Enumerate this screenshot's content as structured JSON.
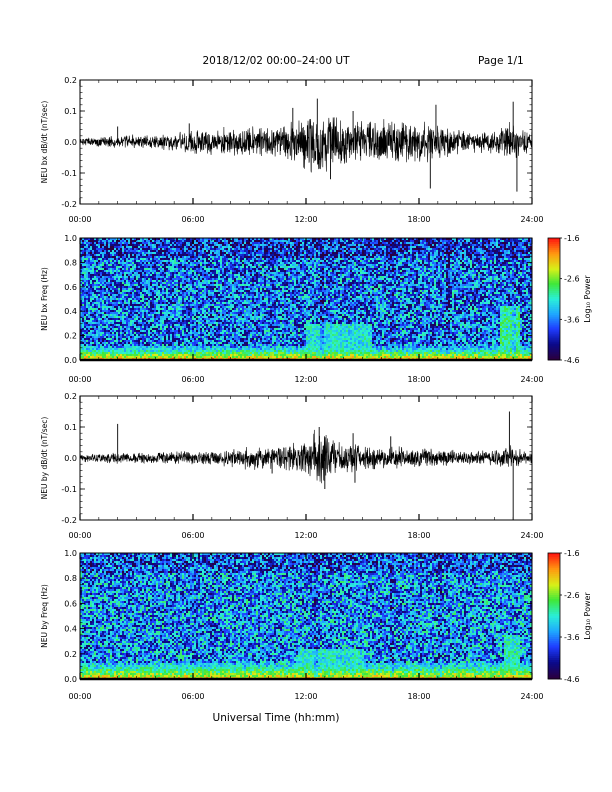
{
  "header": {
    "title": "2018/12/02  00:00–24:00 UT",
    "page": "Page 1/1"
  },
  "xaxis": {
    "label": "Universal Time (hh:mm)",
    "ticks": [
      "00:00",
      "06:00",
      "12:00",
      "18:00",
      "24:00"
    ],
    "range_hours": [
      0,
      24
    ]
  },
  "colormap": [
    "#2a0040",
    "#0a0a8c",
    "#1f3cff",
    "#1fa8ff",
    "#2af0d8",
    "#3fe83a",
    "#d8f018",
    "#ff9a10",
    "#ff1a10"
  ],
  "chart_data": [
    {
      "type": "line",
      "ylabel": "NEU bx dB/dt (nT/sec)",
      "ylim": [
        -0.2,
        0.2
      ],
      "yticks": [
        "0.2",
        "0.1",
        "0.0",
        "-0.1",
        "-0.2"
      ],
      "series_color": "#000000",
      "envelope": {
        "x_hours": [
          0,
          1,
          2,
          3,
          4,
          5,
          5.5,
          6,
          7,
          8,
          9,
          10,
          10.8,
          11.5,
          12,
          12.5,
          13,
          13.5,
          14,
          15,
          16,
          16.5,
          17,
          18,
          18.5,
          19,
          20,
          21,
          22,
          22.8,
          23.5,
          24
        ],
        "amplitude": [
          0.012,
          0.013,
          0.018,
          0.02,
          0.02,
          0.025,
          0.03,
          0.035,
          0.035,
          0.04,
          0.04,
          0.045,
          0.055,
          0.07,
          0.075,
          0.09,
          0.08,
          0.07,
          0.065,
          0.06,
          0.06,
          0.06,
          0.06,
          0.05,
          0.055,
          0.045,
          0.035,
          0.03,
          0.03,
          0.06,
          0.04,
          0.03
        ]
      },
      "spikes": [
        {
          "hour": 2.0,
          "value": 0.05
        },
        {
          "hour": 5.8,
          "value": 0.06
        },
        {
          "hour": 11.3,
          "value": 0.11
        },
        {
          "hour": 12.6,
          "value": 0.14
        },
        {
          "hour": 13.3,
          "value": -0.12
        },
        {
          "hour": 14.5,
          "value": 0.1
        },
        {
          "hour": 18.6,
          "value": -0.15
        },
        {
          "hour": 18.9,
          "value": 0.12
        },
        {
          "hour": 23.0,
          "value": 0.13
        },
        {
          "hour": 23.2,
          "value": -0.16
        }
      ]
    },
    {
      "type": "heatmap",
      "ylabel": "NEU bx Freq (Hz)",
      "ylim": [
        0,
        1.0
      ],
      "yticks": [
        "1.0",
        "0.8",
        "0.6",
        "0.4",
        "0.2",
        "0.0"
      ],
      "colorbar": {
        "label": "Log₁₀ Power",
        "ticks": [
          "-1.6",
          "-2.6",
          "-3.6",
          "-4.6"
        ],
        "range": [
          -4.6,
          -1.6
        ]
      },
      "background_log_power": -3.7,
      "low_freq_band": {
        "max_hz": 0.12,
        "peak_log_power": -1.9
      },
      "enhancements": [
        {
          "start_hour": 12.0,
          "end_hour": 15.5,
          "max_hz": 0.3,
          "log_power": -3.2
        },
        {
          "start_hour": 22.3,
          "end_hour": 23.3,
          "max_hz": 0.45,
          "log_power": -3.0
        }
      ],
      "vertical_streaks_hours": [
        12.8,
        16.5,
        19.5,
        23.0
      ]
    },
    {
      "type": "line",
      "ylabel": "NEU by dB/dt (nT/sec)",
      "ylim": [
        -0.2,
        0.2
      ],
      "yticks": [
        "0.2",
        "0.1",
        "0.0",
        "-0.1",
        "-0.2"
      ],
      "series_color": "#000000",
      "envelope": {
        "x_hours": [
          0,
          1,
          2,
          3,
          4,
          5,
          6,
          7,
          8,
          9,
          9.5,
          10,
          11,
          11.5,
          12,
          12.5,
          13,
          13.5,
          14,
          15,
          16,
          17,
          18,
          19,
          20,
          21,
          22,
          22.8,
          23.5,
          24
        ],
        "amplitude": [
          0.012,
          0.012,
          0.015,
          0.015,
          0.015,
          0.018,
          0.02,
          0.02,
          0.025,
          0.03,
          0.035,
          0.03,
          0.035,
          0.045,
          0.06,
          0.08,
          0.065,
          0.05,
          0.045,
          0.035,
          0.03,
          0.03,
          0.025,
          0.025,
          0.02,
          0.02,
          0.02,
          0.04,
          0.02,
          0.015
        ]
      },
      "spikes": [
        {
          "hour": 2.0,
          "value": 0.11
        },
        {
          "hour": 10.2,
          "value": -0.05
        },
        {
          "hour": 12.7,
          "value": 0.1
        },
        {
          "hour": 13.0,
          "value": -0.1
        },
        {
          "hour": 14.5,
          "value": 0.08
        },
        {
          "hour": 14.6,
          "value": -0.08
        },
        {
          "hour": 16.5,
          "value": 0.07
        },
        {
          "hour": 22.8,
          "value": 0.15
        },
        {
          "hour": 23.0,
          "value": -0.2
        }
      ]
    },
    {
      "type": "heatmap",
      "ylabel": "NEU by Freq (Hz)",
      "ylim": [
        0,
        1.0
      ],
      "yticks": [
        "1.0",
        "0.8",
        "0.6",
        "0.4",
        "0.2",
        "0.0"
      ],
      "colorbar": {
        "label": "Log₁₀ Power",
        "ticks": [
          "-1.6",
          "-2.6",
          "-3.6",
          "-4.6"
        ],
        "range": [
          -4.6,
          -1.6
        ]
      },
      "background_log_power": -3.6,
      "low_freq_band": {
        "max_hz": 0.14,
        "peak_log_power": -2.1
      },
      "enhancements": [
        {
          "start_hour": 11.5,
          "end_hour": 15.0,
          "max_hz": 0.25,
          "log_power": -3.2
        },
        {
          "start_hour": 22.5,
          "end_hour": 23.3,
          "max_hz": 0.35,
          "log_power": -3.1
        }
      ],
      "vertical_streaks_hours": [
        12.5,
        16.5,
        19.0
      ]
    }
  ]
}
